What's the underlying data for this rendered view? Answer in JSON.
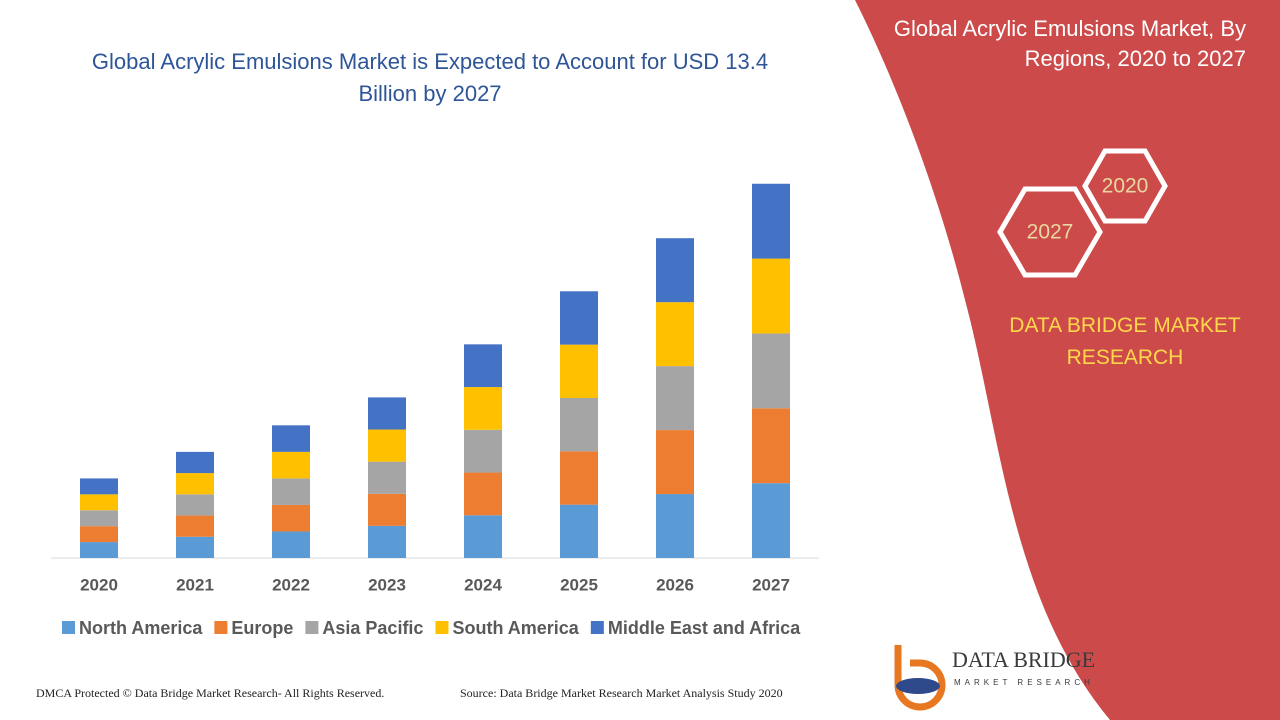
{
  "chart_data": {
    "type": "bar",
    "stacked": true,
    "title": "Global Acrylic Emulsions Market is Expected to Account for USD 13.4 Billion by 2027",
    "categories": [
      "2020",
      "2021",
      "2022",
      "2023",
      "2024",
      "2025",
      "2026",
      "2027"
    ],
    "series": [
      {
        "name": "North America",
        "color": "#5b9bd5",
        "values": [
          0.57,
          0.76,
          0.95,
          1.15,
          1.53,
          1.91,
          2.29,
          2.68
        ]
      },
      {
        "name": "Europe",
        "color": "#ed7d31",
        "values": [
          0.57,
          0.76,
          0.95,
          1.15,
          1.53,
          1.91,
          2.29,
          2.68
        ]
      },
      {
        "name": "Asia Pacific",
        "color": "#a5a5a5",
        "values": [
          0.57,
          0.76,
          0.95,
          1.15,
          1.53,
          1.91,
          2.29,
          2.68
        ]
      },
      {
        "name": "South America",
        "color": "#ffc000",
        "values": [
          0.57,
          0.76,
          0.95,
          1.15,
          1.53,
          1.91,
          2.29,
          2.68
        ]
      },
      {
        "name": "Middle East and Africa",
        "color": "#4472c4",
        "values": [
          0.57,
          0.76,
          0.95,
          1.15,
          1.53,
          1.91,
          2.29,
          2.68
        ]
      }
    ],
    "ylim": [
      0,
      14
    ],
    "legend": "bottom"
  },
  "panel": {
    "title": "Global Acrylic Emulsions Market, By Regions, 2020 to 2027",
    "year_start": "2020",
    "year_end": "2027",
    "brand": "DATA BRIDGE MARKET RESEARCH"
  },
  "logo": {
    "name": "DATA BRIDGE",
    "tagline": "MARKET RESEARCH"
  },
  "footer": {
    "left": "DMCA Protected © Data Bridge Market Research- All Rights Reserved.",
    "right": "Source: Data Bridge Market Research Market Analysis Study 2020"
  }
}
